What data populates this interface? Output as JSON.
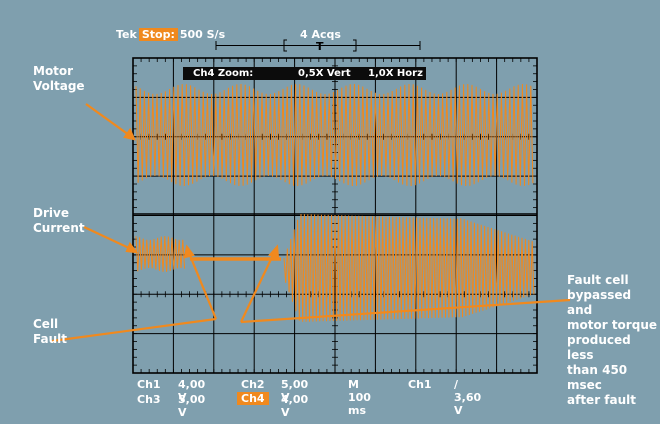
{
  "header": {
    "brand": "Tek",
    "mode": "Stop:",
    "rate": "500 S/s",
    "acquisitions": "4 Acqs",
    "trigger_marker": "T"
  },
  "zoom": {
    "channel": "Ch4 Zoom:",
    "vertical": "0,5X Vert",
    "horizontal": "1,0X Horz"
  },
  "annotations": {
    "motor_voltage_line1": "Motor",
    "motor_voltage_line2": "Voltage",
    "drive_current_line1": "Drive",
    "drive_current_line2": "Current",
    "cell_fault_line1": "Cell",
    "cell_fault_line2": "Fault",
    "bypass_line1": "Fault cell",
    "bypass_line2": "bypassed and",
    "bypass_line3": "motor torque",
    "bypass_line4": "produced less",
    "bypass_line5": "than 450 msec",
    "bypass_line6": "after fault"
  },
  "readouts": {
    "ch1_label": "Ch1",
    "ch1_scale": "4,00 V",
    "ch2_label": "Ch2",
    "ch2_scale": "5,00 V",
    "timebase": "M 100 ms",
    "trigger_source": "Ch1",
    "trigger_level": "∕ 3,60 V",
    "ch3_label": "Ch3",
    "ch3_scale": "5,00 V",
    "ch4_label": "Ch4",
    "ch4_scale": "4,00 V"
  },
  "colors": {
    "background": "#7f9fae",
    "trace": "#f0891e",
    "grid": "#000000"
  }
}
